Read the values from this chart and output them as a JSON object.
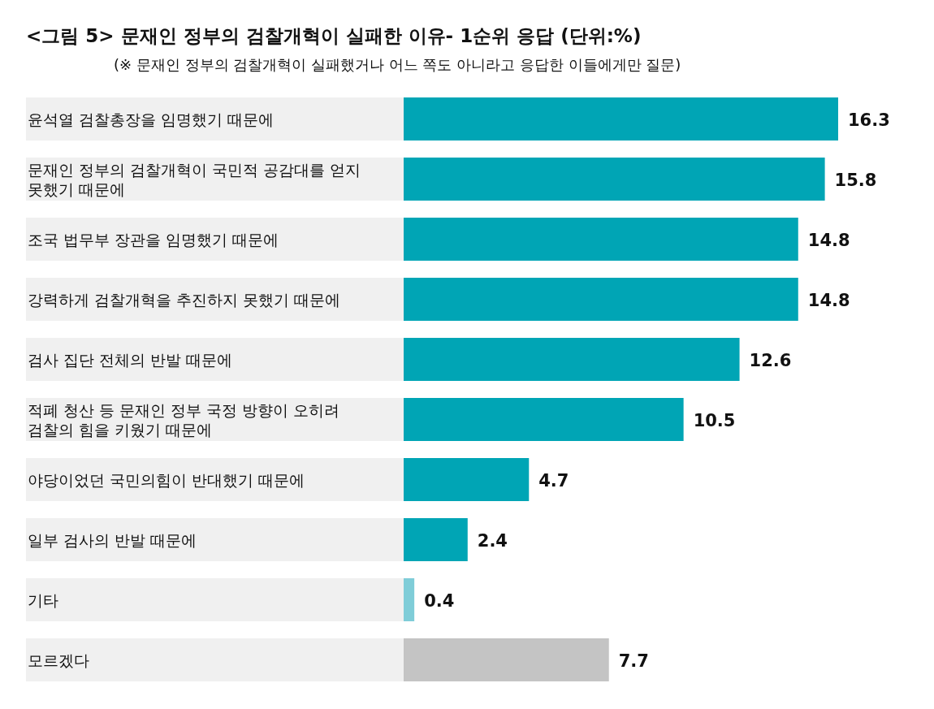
{
  "chart_data": {
    "type": "bar",
    "orientation": "horizontal",
    "title": "<그림 5> 문재인 정부의 검찰개혁이 실패한 이유- 1순위 응답 (단위:%)",
    "subtitle": "(※ 문재인 정부의 검찰개혁이 실패했거나 어느 쪽도 아니라고 응답한 이들에게만 질문)",
    "categories": [
      "윤석열 검찰총장을 임명했기 때문에",
      "문재인 정부의 검찰개혁이 국민적 공감대를 얻지 못했기 때문에",
      "조국 법무부 장관을 임명했기 때문에",
      "강력하게 검찰개혁을 추진하지 못했기 때문에",
      "검사 집단 전체의 반발 때문에",
      "적폐 청산 등 문재인 정부 국정 방향이 오히려 검찰의 힘을 키웠기 때문에",
      "야당이었던 국민의힘이 반대했기 때문에",
      "일부 검사의 반발 때문에",
      "기타",
      "모르겠다"
    ],
    "values": [
      16.3,
      15.8,
      14.8,
      14.8,
      12.6,
      10.5,
      4.7,
      2.4,
      0.4,
      7.7
    ],
    "colors": [
      "#00a5b5",
      "#00a5b5",
      "#00a5b5",
      "#00a5b5",
      "#00a5b5",
      "#00a5b5",
      "#00a5b5",
      "#00a5b5",
      "#7fcdd8",
      "#c4c4c4"
    ],
    "data_labels": true
  }
}
